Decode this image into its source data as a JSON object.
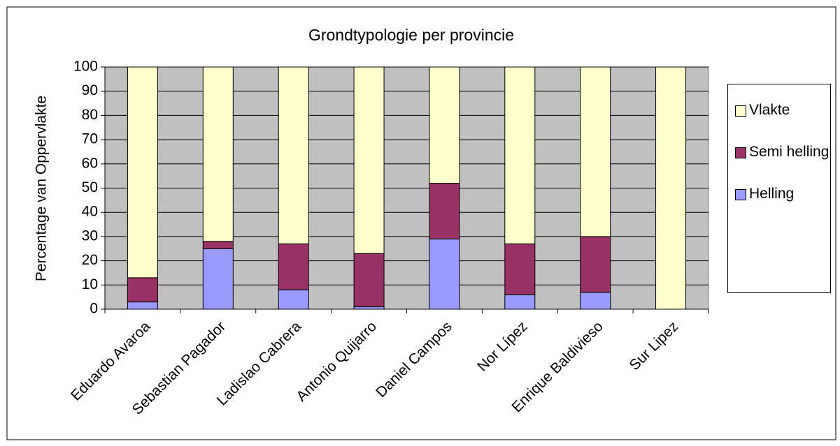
{
  "chart_data": {
    "type": "stacked_bar",
    "title": "Grondtypologie per provincie",
    "y_label": "Percentage van Oppervlakte",
    "categories": [
      "Eduardo Avaroa",
      "Sebastian Pagador",
      "Ladislao Cabrera",
      "Antonio Quijarro",
      "Daniel Campos",
      "Nor Lípez",
      "Enrique Baldivieso",
      "Sur Lipez"
    ],
    "series": [
      {
        "name": "Helling",
        "color": "#9999ff",
        "values": [
          3,
          25,
          8,
          1,
          29,
          6,
          7,
          0
        ]
      },
      {
        "name": "Semi helling",
        "color": "#993366",
        "values": [
          10,
          3,
          19,
          22,
          23,
          21,
          23,
          0
        ]
      },
      {
        "name": "Vlakte",
        "color": "#ffffcc",
        "values": [
          87,
          72,
          73,
          77,
          48,
          73,
          70,
          100
        ]
      }
    ],
    "ylim": [
      0,
      100
    ],
    "yticks": [
      0,
      10,
      20,
      30,
      40,
      50,
      60,
      70,
      80,
      90,
      100
    ],
    "grid": true,
    "plot_background": "#c0c0c0",
    "legend": "right"
  }
}
